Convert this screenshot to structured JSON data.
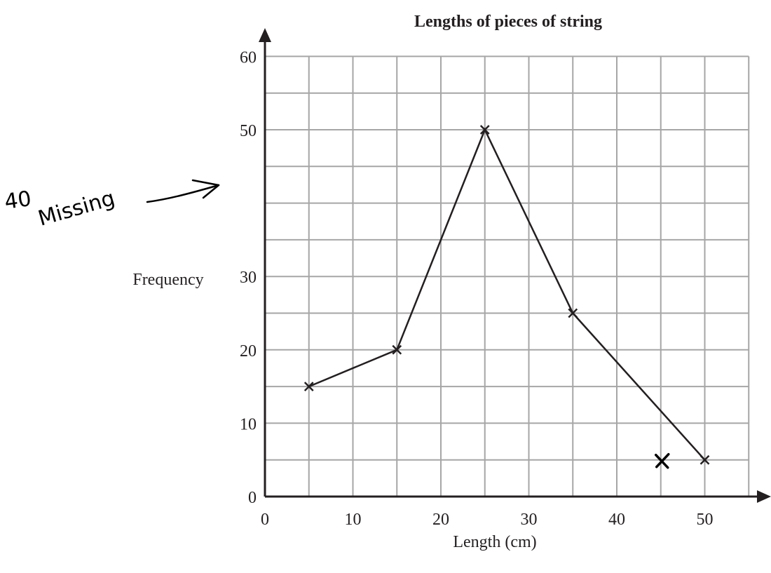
{
  "chart_data": {
    "type": "line",
    "title": "Lengths of pieces of string",
    "xlabel": "Length (cm)",
    "ylabel": "Frequency",
    "xlim": [
      0,
      55
    ],
    "ylim": [
      0,
      60
    ],
    "x_ticks": [
      0,
      10,
      20,
      30,
      40,
      50
    ],
    "y_ticks": [
      0,
      10,
      20,
      30,
      40,
      50,
      60
    ],
    "y_tick_labels": [
      "0",
      "10",
      "20",
      "30",
      "",
      "50",
      "60"
    ],
    "grid": true,
    "marker": "x",
    "series": [
      {
        "x": [
          5,
          15,
          25,
          35,
          50
        ],
        "y": [
          15,
          20,
          50,
          25,
          5
        ]
      }
    ],
    "extra_points": [
      {
        "x": 45,
        "y": 5
      }
    ]
  },
  "annotation": {
    "text_top": "40",
    "text_bottom": "Missing"
  }
}
